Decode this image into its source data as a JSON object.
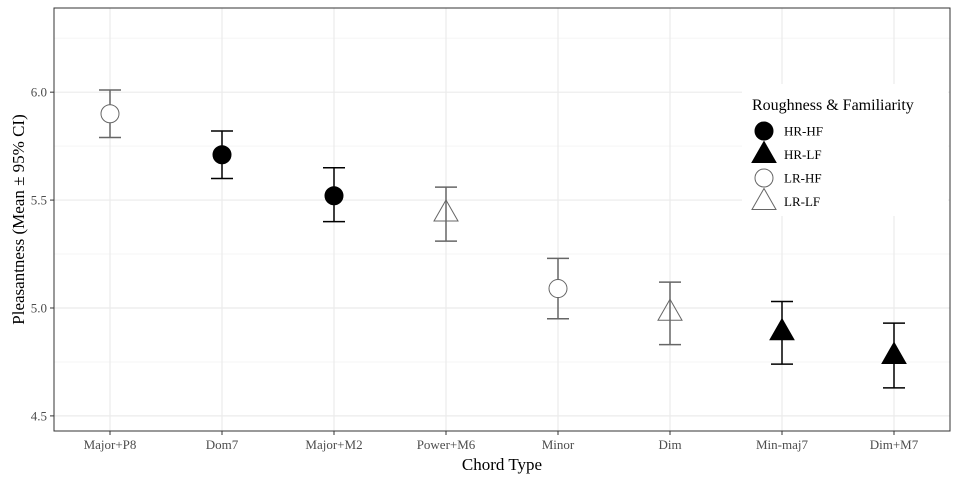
{
  "chart_data": {
    "type": "scatter",
    "title": "",
    "xlabel": "Chord Type",
    "ylabel": "Pleasantness (Mean ± 95% CI)",
    "categories": [
      "Major+P8",
      "Dom7",
      "Major+M2",
      "Power+M6",
      "Minor",
      "Dim",
      "Min-maj7",
      "Dim+M7"
    ],
    "ylim": [
      4.43,
      6.39
    ],
    "yticks": [
      "4.5",
      "5.0",
      "5.5",
      "6.0"
    ],
    "grid": true,
    "legend": {
      "title": "Roughness & Familiarity",
      "placement": "top-right",
      "entries": [
        "HR-HF",
        "HR-LF",
        "LR-HF",
        "LR-LF"
      ]
    },
    "group_styles": {
      "HR-HF": {
        "shape": "circle",
        "filled": true,
        "color": "#000000"
      },
      "HR-LF": {
        "shape": "triangle",
        "filled": true,
        "color": "#000000"
      },
      "LR-HF": {
        "shape": "circle",
        "filled": false,
        "color": "#666666"
      },
      "LR-LF": {
        "shape": "triangle",
        "filled": false,
        "color": "#666666"
      }
    },
    "points": [
      {
        "category": "Major+P8",
        "group": "LR-HF",
        "mean": 5.9,
        "lower": 5.79,
        "upper": 6.01
      },
      {
        "category": "Dom7",
        "group": "HR-HF",
        "mean": 5.71,
        "lower": 5.6,
        "upper": 5.82
      },
      {
        "category": "Major+M2",
        "group": "HR-HF",
        "mean": 5.52,
        "lower": 5.4,
        "upper": 5.65
      },
      {
        "category": "Power+M6",
        "group": "LR-LF",
        "mean": 5.44,
        "lower": 5.31,
        "upper": 5.56
      },
      {
        "category": "Minor",
        "group": "LR-HF",
        "mean": 5.09,
        "lower": 4.95,
        "upper": 5.23
      },
      {
        "category": "Dim",
        "group": "LR-LF",
        "mean": 4.98,
        "lower": 4.83,
        "upper": 5.12
      },
      {
        "category": "Min-maj7",
        "group": "HR-LF",
        "mean": 4.89,
        "lower": 4.74,
        "upper": 5.03
      },
      {
        "category": "Dim+M7",
        "group": "HR-LF",
        "mean": 4.78,
        "lower": 4.63,
        "upper": 4.93
      }
    ]
  },
  "colors": {
    "panel_border": "#333333",
    "major_grid": "#ebebeb",
    "minor_grid": "#f5f5f5",
    "tick_text": "#4d4d4d"
  }
}
